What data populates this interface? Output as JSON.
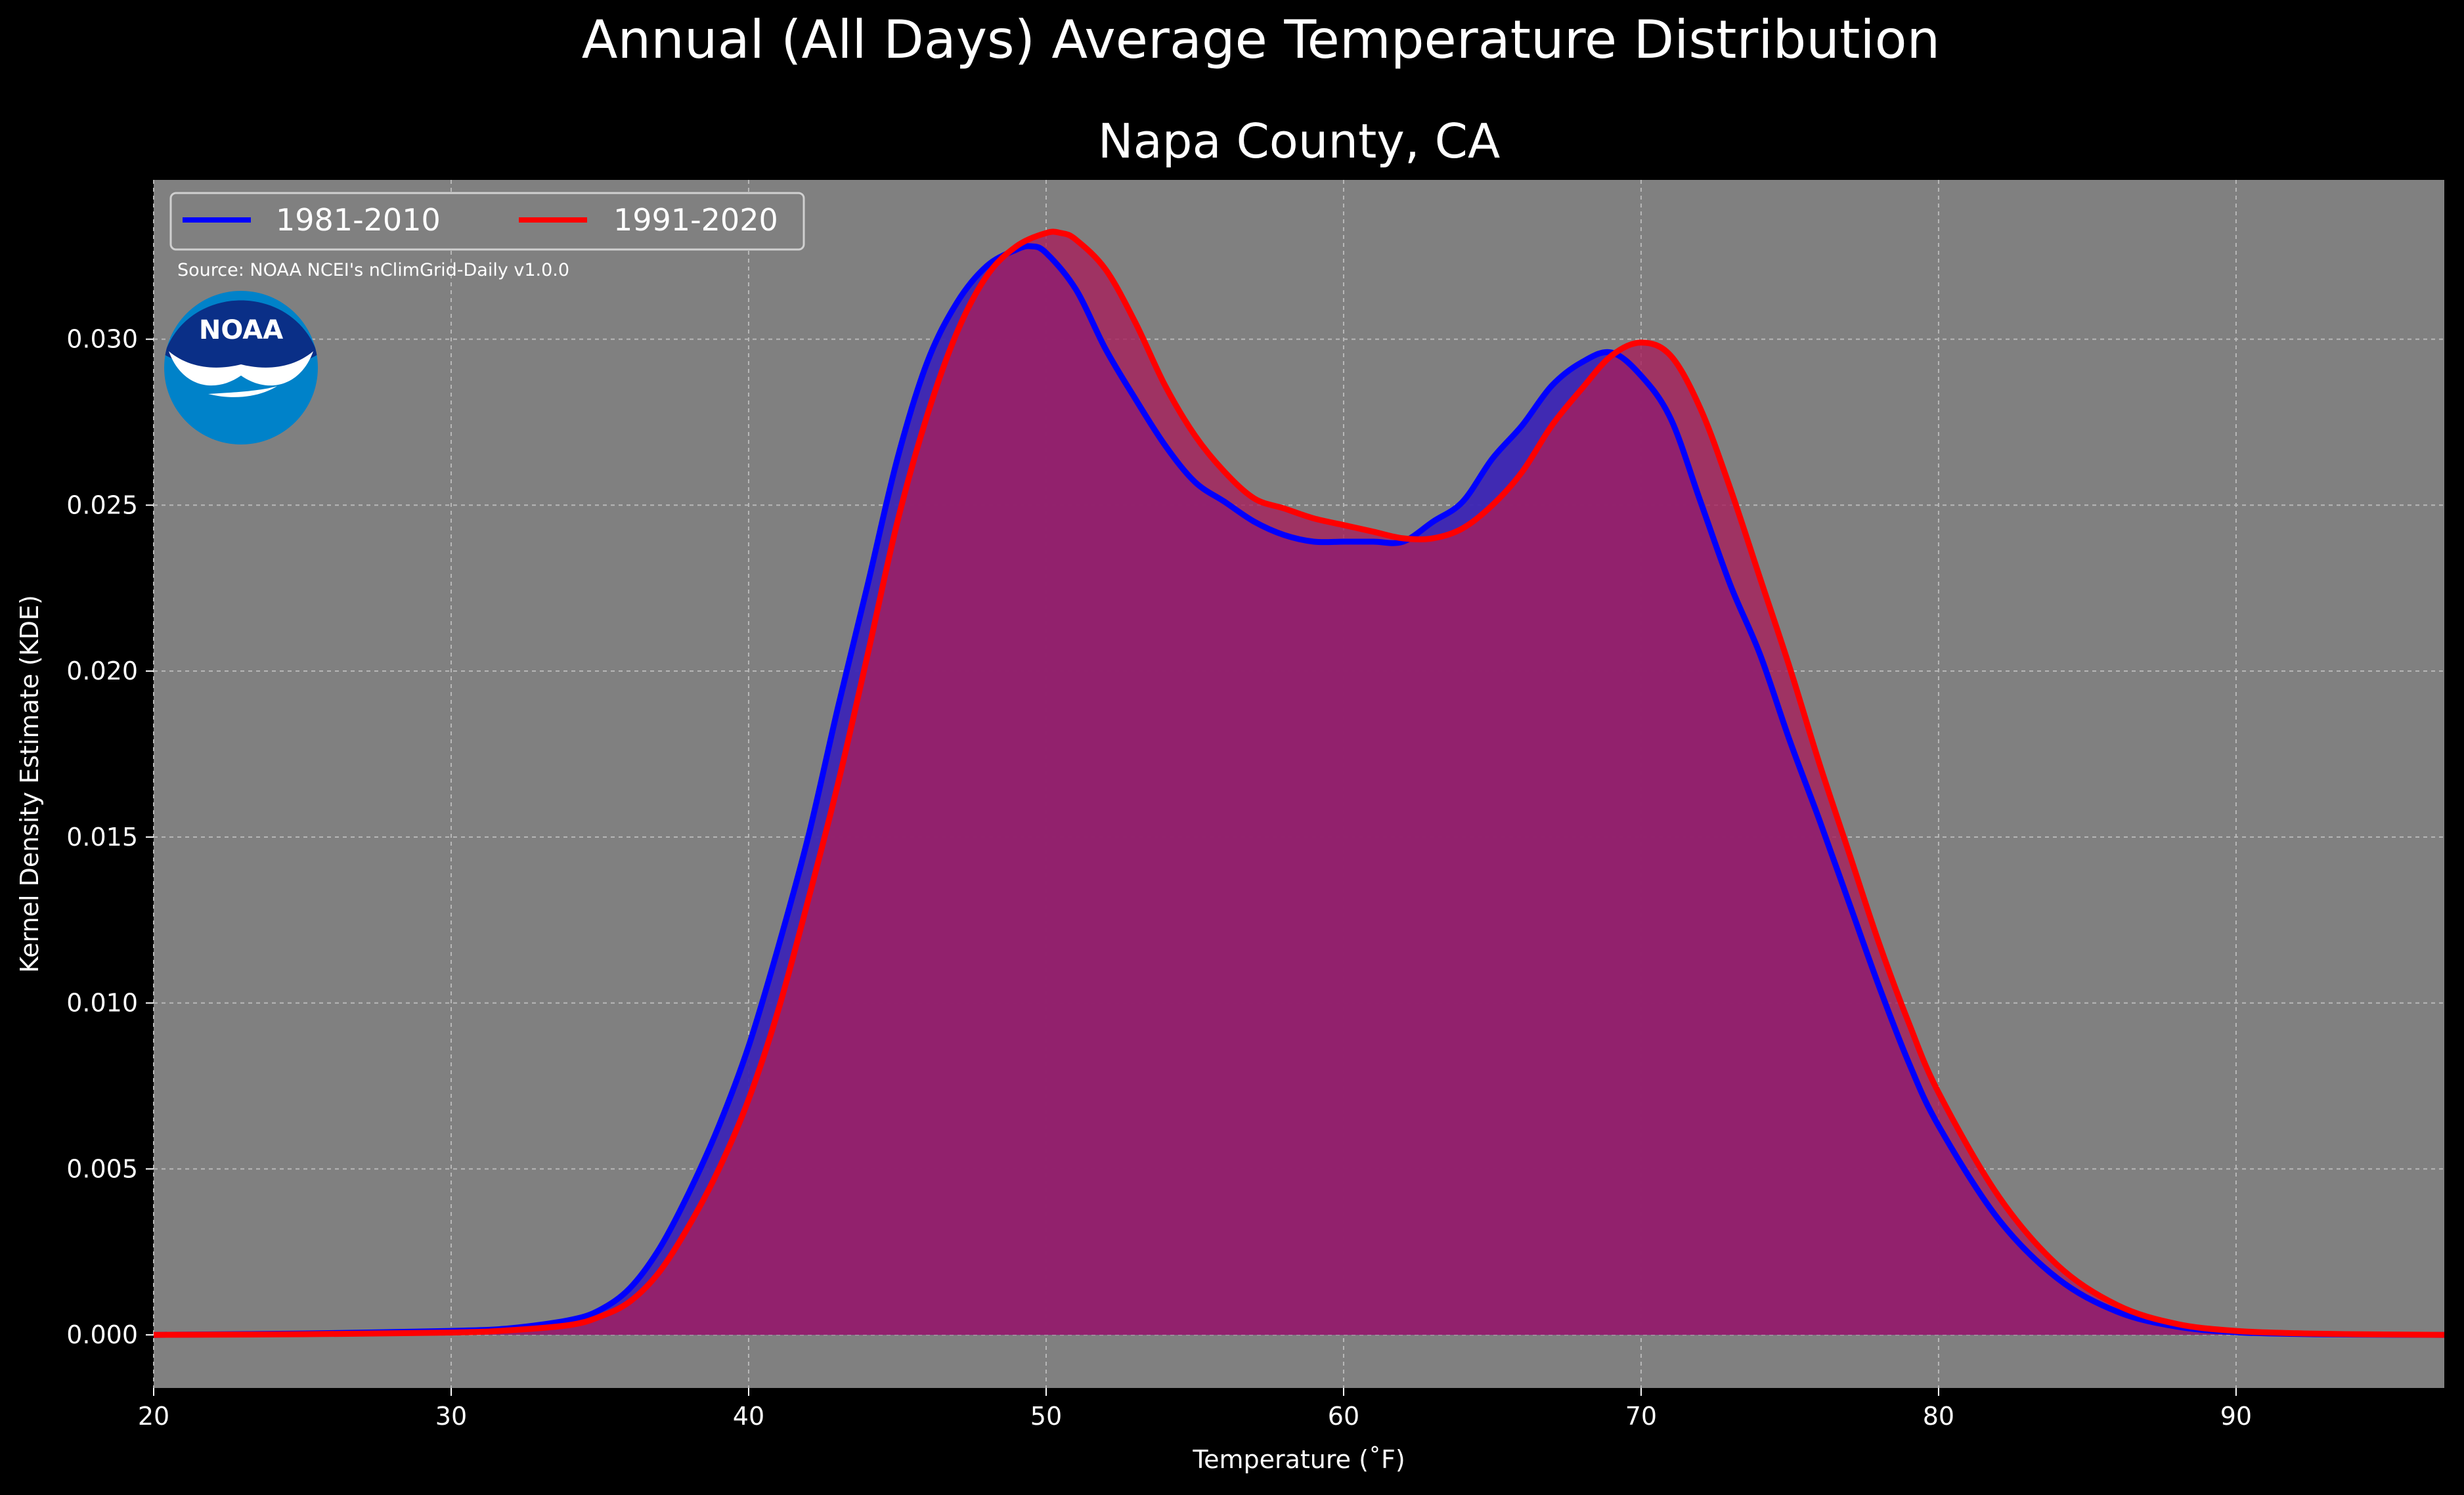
{
  "figure": {
    "suptitle": "Annual (All Days) Average Temperature Distribution",
    "background": "#000000",
    "plot_background": "#808080"
  },
  "source_note": "Source: NOAA NCEI's nClimGrid-Daily v1.0.0",
  "logo": {
    "text": "NOAA",
    "icon": "noaa-logo-icon",
    "colors": [
      "#0a2f87",
      "#0082c9",
      "#ffffff"
    ]
  },
  "chart_data": {
    "type": "area",
    "title": "Napa County, CA",
    "xlabel": "Temperature ($^\\circ$F)",
    "xlabel_display": "Temperature (˚F)",
    "ylabel": "Kernel Density Estimate (KDE)",
    "xlim": [
      20,
      97
    ],
    "ylim": [
      -0.0016,
      0.0348
    ],
    "x_ticks": [
      20,
      30,
      40,
      50,
      60,
      70,
      80,
      90
    ],
    "y_ticks": [
      0.0,
      0.005,
      0.01,
      0.015,
      0.02,
      0.025,
      0.03
    ],
    "y_tick_labels": [
      "0.000",
      "0.005",
      "0.010",
      "0.015",
      "0.020",
      "0.025",
      "0.030"
    ],
    "grid": true,
    "legend": {
      "placement": "top-left",
      "columns": 2
    },
    "series": [
      {
        "name": "1981-2010",
        "color": "#0000ff",
        "fill": "#3c25b4",
        "x": [
          20,
          25,
          30,
          32,
          34,
          35,
          36,
          37,
          38,
          39,
          40,
          41,
          42,
          43,
          44,
          45,
          46,
          47,
          48,
          49,
          49.5,
          50,
          51,
          52,
          53,
          54,
          55,
          56,
          57,
          58,
          59,
          60,
          61,
          62,
          63,
          64,
          65,
          66,
          67,
          68,
          69,
          70,
          71,
          72,
          73,
          74,
          75,
          76,
          77,
          78,
          79,
          80,
          82,
          84,
          86,
          88,
          90,
          92,
          94,
          97
        ],
        "y": [
          0.0,
          4e-05,
          0.00012,
          0.0002,
          0.00045,
          0.00075,
          0.0014,
          0.0026,
          0.0043,
          0.0063,
          0.0087,
          0.0117,
          0.015,
          0.0189,
          0.0226,
          0.0264,
          0.0293,
          0.0311,
          0.0322,
          0.0327,
          0.0328,
          0.0326,
          0.0315,
          0.0297,
          0.0282,
          0.0268,
          0.0257,
          0.0251,
          0.0245,
          0.0241,
          0.0239,
          0.0239,
          0.0239,
          0.0239,
          0.0245,
          0.0251,
          0.0264,
          0.0274,
          0.0286,
          0.0293,
          0.0296,
          0.0289,
          0.0276,
          0.0251,
          0.0226,
          0.0205,
          0.0179,
          0.0155,
          0.013,
          0.0105,
          0.0082,
          0.0063,
          0.0035,
          0.0017,
          0.0007,
          0.00025,
          8e-05,
          3e-05,
          1e-05,
          0.0
        ]
      },
      {
        "name": "1991-2020",
        "color": "#ff0000",
        "fill": "#a61f5b",
        "x": [
          20,
          25,
          30,
          32,
          34,
          35,
          36,
          37,
          38,
          39,
          40,
          41,
          42,
          43,
          44,
          45,
          46,
          47,
          48,
          49,
          50,
          50.5,
          51,
          52,
          53,
          54,
          55,
          56,
          57,
          58,
          59,
          60,
          61,
          62,
          63,
          64,
          65,
          66,
          67,
          68,
          69,
          70,
          71,
          72,
          73,
          74,
          75,
          76,
          77,
          78,
          79,
          80,
          82,
          84,
          86,
          88,
          90,
          92,
          94,
          97
        ],
        "y": [
          0.0,
          2e-05,
          7e-05,
          0.00014,
          0.0003,
          0.00055,
          0.001,
          0.0019,
          0.0033,
          0.005,
          0.0071,
          0.0098,
          0.0131,
          0.0166,
          0.0205,
          0.0245,
          0.0277,
          0.0302,
          0.0319,
          0.0328,
          0.0332,
          0.0332,
          0.033,
          0.0321,
          0.0305,
          0.0286,
          0.0271,
          0.026,
          0.0252,
          0.0249,
          0.0246,
          0.0244,
          0.0242,
          0.024,
          0.024,
          0.0243,
          0.025,
          0.026,
          0.0274,
          0.0285,
          0.0295,
          0.0299,
          0.0295,
          0.0279,
          0.0255,
          0.0228,
          0.0201,
          0.0172,
          0.0145,
          0.0118,
          0.0094,
          0.0073,
          0.0042,
          0.0021,
          0.0009,
          0.00033,
          0.00012,
          5e-05,
          2e-05,
          0.0
        ]
      }
    ]
  }
}
